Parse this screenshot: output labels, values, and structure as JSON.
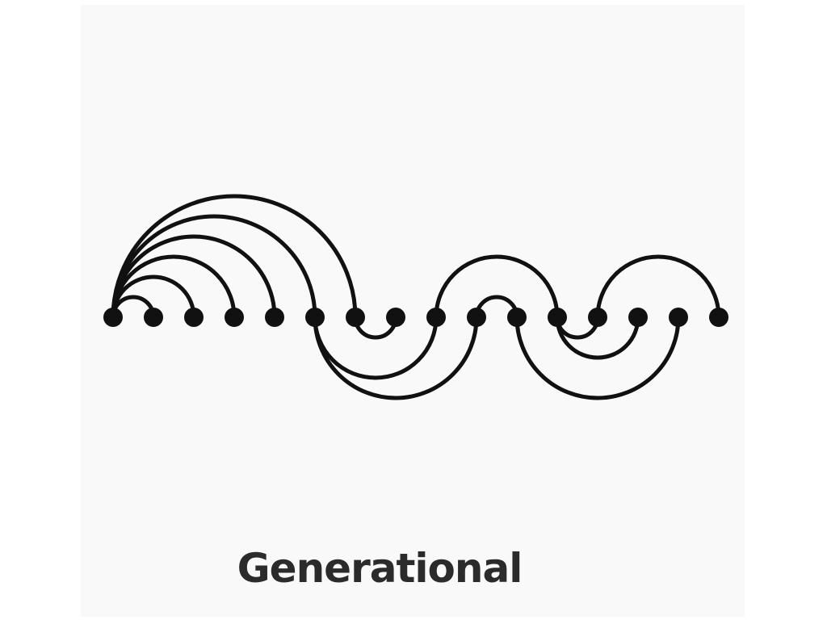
{
  "diagram": {
    "caption": "Generational",
    "node_count": 16,
    "colors": {
      "ink": "#111111",
      "background": "#f9f9f9"
    },
    "arcs": [
      {
        "from": 1,
        "to": 2,
        "side": "above"
      },
      {
        "from": 1,
        "to": 3,
        "side": "above"
      },
      {
        "from": 1,
        "to": 4,
        "side": "above"
      },
      {
        "from": 1,
        "to": 5,
        "side": "above"
      },
      {
        "from": 1,
        "to": 6,
        "side": "above"
      },
      {
        "from": 1,
        "to": 7,
        "side": "above"
      },
      {
        "from": 7,
        "to": 8,
        "side": "below"
      },
      {
        "from": 6,
        "to": 9,
        "side": "below"
      },
      {
        "from": 6,
        "to": 10,
        "side": "below"
      },
      {
        "from": 9,
        "to": 12,
        "side": "above"
      },
      {
        "from": 10,
        "to": 11,
        "side": "above"
      },
      {
        "from": 12,
        "to": 13,
        "side": "below"
      },
      {
        "from": 12,
        "to": 14,
        "side": "below"
      },
      {
        "from": 11,
        "to": 15,
        "side": "below"
      },
      {
        "from": 13,
        "to": 16,
        "side": "above"
      }
    ]
  }
}
